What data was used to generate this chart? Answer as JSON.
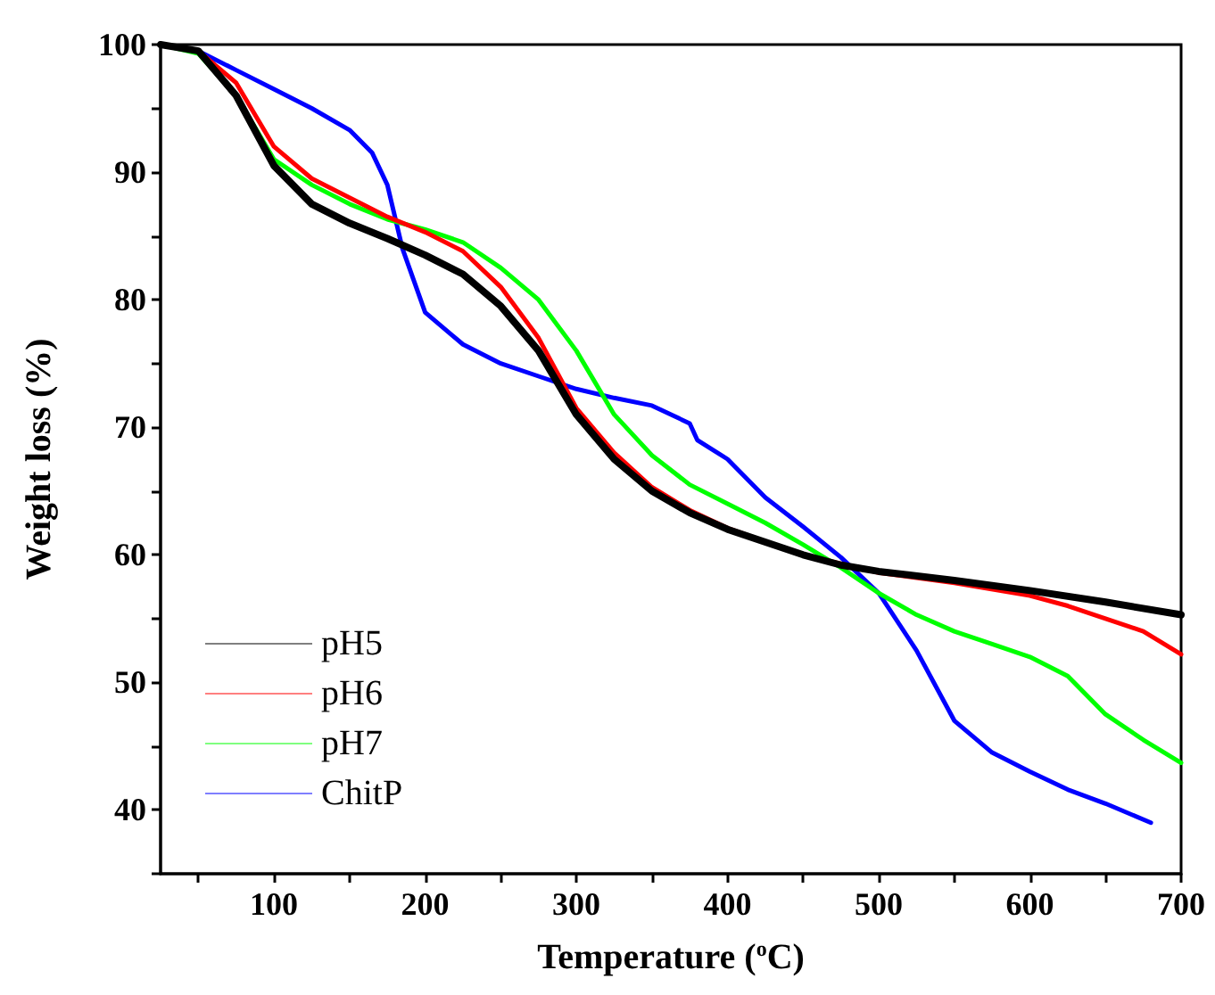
{
  "chart_data": {
    "type": "line",
    "xlabel": "Temperature ($^{o}$C)",
    "ylabel": "Weight loss (%)",
    "xlim": [
      25,
      700
    ],
    "xticks": [
      {
        "value": 50,
        "label": null
      },
      100,
      {
        "value": 150,
        "label": null
      },
      200,
      {
        "value": 250,
        "label": null
      },
      300,
      {
        "value": 350,
        "label": null
      },
      400,
      {
        "value": 450,
        "label": null
      },
      500,
      {
        "value": 550,
        "label": null
      },
      600,
      {
        "value": 650,
        "label": null
      },
      700
    ],
    "ylim": [
      35,
      100
    ],
    "yticks": [
      {
        "value": 35,
        "label": null
      },
      40,
      {
        "value": 45,
        "label": null
      },
      50,
      {
        "value": 55,
        "label": null
      },
      60,
      {
        "value": 65,
        "label": null
      },
      70,
      {
        "value": 75,
        "label": null
      },
      80,
      {
        "value": 85,
        "label": null
      },
      90,
      {
        "value": 95,
        "label": null
      },
      100
    ],
    "grid": false,
    "legend": "bottom left",
    "marker": "none",
    "line_style": "solid",
    "series": [
      {
        "name": "pH5",
        "color": "#000000",
        "x": [
          25,
          50,
          75,
          100,
          125,
          150,
          175,
          200,
          225,
          250,
          275,
          300,
          325,
          350,
          375,
          400,
          425,
          450,
          475,
          500,
          550,
          600,
          650,
          700
        ],
        "values": [
          100,
          99.5,
          96,
          90.5,
          87.5,
          86,
          84.8,
          83.5,
          82,
          79.5,
          76,
          71,
          67.5,
          65,
          63.3,
          62,
          61,
          60,
          59.2,
          58.7,
          58,
          57.2,
          56.3,
          55.3
        ]
      },
      {
        "name": "pH6",
        "color": "#ff0000",
        "x": [
          25,
          50,
          75,
          100,
          125,
          150,
          175,
          200,
          225,
          250,
          275,
          300,
          325,
          350,
          375,
          400,
          450,
          500,
          550,
          600,
          625,
          650,
          675,
          700
        ],
        "values": [
          100,
          99.5,
          97,
          92,
          89.5,
          88,
          86.5,
          85.3,
          83.8,
          81,
          77,
          71.5,
          68,
          65.3,
          63.5,
          62.1,
          60,
          58.6,
          57.8,
          56.8,
          56,
          55,
          54,
          52.2
        ]
      },
      {
        "name": "pH7",
        "color": "#00ff00",
        "x": [
          25,
          50,
          75,
          100,
          125,
          150,
          175,
          200,
          225,
          250,
          275,
          300,
          325,
          350,
          375,
          400,
          425,
          450,
          475,
          500,
          525,
          550,
          575,
          600,
          625,
          650,
          675,
          700
        ],
        "values": [
          100,
          99.3,
          96,
          91,
          89,
          87.5,
          86.3,
          85.5,
          84.5,
          82.5,
          80,
          76,
          71,
          67.8,
          65.5,
          64,
          62.5,
          60.8,
          59,
          57,
          55.3,
          54,
          53,
          52,
          50.5,
          47.5,
          45.5,
          43.7
        ]
      },
      {
        "name": "ChitP",
        "color": "#0000ff",
        "x": [
          25,
          50,
          75,
          100,
          125,
          150,
          165,
          175,
          185,
          200,
          225,
          250,
          275,
          300,
          325,
          350,
          375,
          380,
          400,
          425,
          450,
          475,
          500,
          525,
          550,
          575,
          600,
          625,
          650,
          680
        ],
        "values": [
          100,
          99.5,
          98,
          96.5,
          95,
          93.3,
          91.5,
          89,
          84,
          79,
          76.5,
          75,
          74,
          73,
          72.3,
          71.7,
          70.3,
          69,
          67.5,
          64.5,
          62.2,
          59.8,
          57,
          52.5,
          47,
          44.5,
          43,
          41.6,
          40.5,
          39
        ]
      }
    ]
  }
}
